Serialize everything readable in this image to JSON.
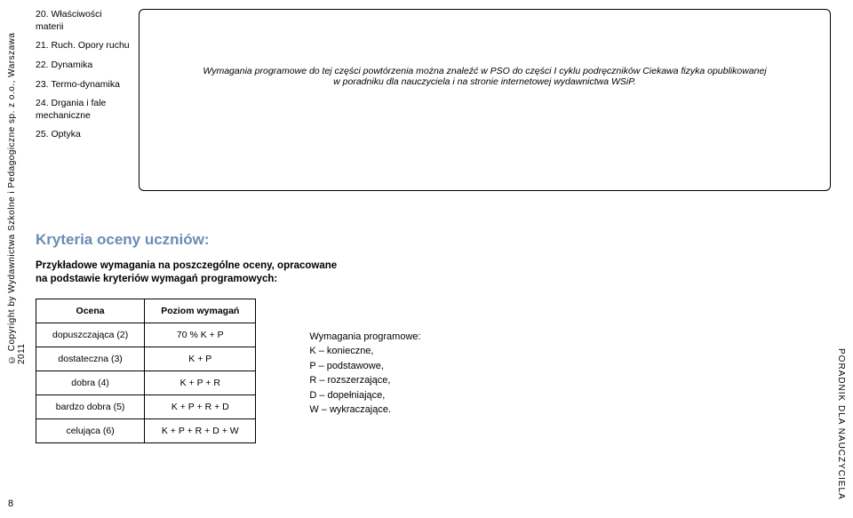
{
  "left_vertical": "© Copyright by Wydawnictwa Szkolne i Pedagogiczne sp. z o.o., Warszawa 2011",
  "page_number": "8",
  "right_vertical": "PORADNIK DLA NAUCZYCIELA",
  "topics": [
    "20. Właściwości materii",
    "21. Ruch. Opory ruchu",
    "22. Dynamika",
    "23. Termo-dynamika",
    "24. Drgania i fale mechaniczne",
    "25. Optyka"
  ],
  "req_box_line1": "Wymagania programowe do tej części powtórzenia można znaleźć w PSO do części I cyklu podręczników Ciekawa fizyka opublikowanej",
  "req_box_line2": "w poradniku dla nauczyciela i na stronie internetowej wydawnictwa WSiP.",
  "criteria_title": "Kryteria oceny uczniów:",
  "criteria_sub_l1": "Przykładowe wymagania na poszczególne oceny, opracowane",
  "criteria_sub_l2": "na podstawie kryteriów wymagań programowych:",
  "table": {
    "headers": [
      "Ocena",
      "Poziom wymagań"
    ],
    "rows": [
      [
        "dopuszczająca (2)",
        "70 % K + P"
      ],
      [
        "dostateczna (3)",
        "K + P"
      ],
      [
        "dobra (4)",
        "K + P + R"
      ],
      [
        "bardzo dobra (5)",
        "K + P + R + D"
      ],
      [
        "celująca (6)",
        "K + P + R + D + W"
      ]
    ]
  },
  "legend": {
    "title": "Wymagania programowe:",
    "items": [
      "K – konieczne,",
      "P – podstawowe,",
      "R – rozszerzające,",
      "D – dopełniające,",
      "W – wykraczające."
    ]
  }
}
